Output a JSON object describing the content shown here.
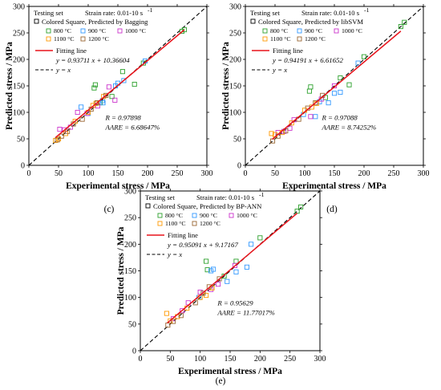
{
  "figure": {
    "panels": [
      {
        "panel_label": "(c)",
        "legend": {
          "set_label": "Testing set",
          "strain_rate": "Strain rate: 0.01-10 s",
          "strain_rate_sup": "-1",
          "model_label": "Colored Square, Predicted by Bagging",
          "temps": [
            "800 °C",
            "900 °C",
            "1000 °C",
            "1100 °C",
            "1200 °C"
          ],
          "fit_label": "Fitting line",
          "fit_equation": "y = 0.93711 x + 10.36604",
          "identity_label": "y = x"
        },
        "stats": {
          "r": "R = 0.97898",
          "aare": "AARE = 6.68647%"
        },
        "xlabel": "Experimental stress / MPa",
        "ylabel": "Predicted stress / MPa"
      },
      {
        "panel_label": "(d)",
        "legend": {
          "set_label": "Testing set",
          "strain_rate": "Strain rate: 0.01-10 s",
          "strain_rate_sup": "-1",
          "model_label": "Colored Square, Predicted by libSVM",
          "temps": [
            "800 °C",
            "900 °C",
            "1000 °C",
            "1100 °C",
            "1200 °C"
          ],
          "fit_label": "Fitting line",
          "fit_equation": "y = 0.94191 x + 6.61652",
          "identity_label": "y = x"
        },
        "stats": {
          "r": "R = 0.97088",
          "aare": "AARE = 8.74252%"
        },
        "xlabel": "Experimental stress / MPa",
        "ylabel": "Predicted stress / MPa"
      },
      {
        "panel_label": "(e)",
        "legend": {
          "set_label": "Testing set",
          "strain_rate": "Strain rate: 0.01-10 s",
          "strain_rate_sup": "-1",
          "model_label": "Colored Square, Predicted by BP-ANN",
          "temps": [
            "800 °C",
            "900 °C",
            "1000 °C",
            "1100 °C",
            "1200 °C"
          ],
          "fit_label": "Fitting line",
          "fit_equation": "y = 0.95091 x + 9.17167",
          "identity_label": "y = x"
        },
        "stats": {
          "r": "R = 0.95629",
          "aare": "AARE = 11.77017%"
        },
        "xlabel": "Experimental stress / MPa",
        "ylabel": "Predicted stress / MPa"
      }
    ]
  },
  "colors": {
    "800": "#2ca02c",
    "900": "#3399ff",
    "1000": "#cc33cc",
    "1100": "#ff9900",
    "1200": "#996633",
    "fit": "#e8131b",
    "identity": "#000000"
  },
  "chart_data": [
    {
      "type": "scatter",
      "xlabel": "Experimental stress / MPa",
      "ylabel": "Predicted stress / MPa",
      "xlim": [
        0,
        300
      ],
      "ylim": [
        0,
        300
      ],
      "xticks": [
        0,
        50,
        100,
        150,
        200,
        250,
        300
      ],
      "yticks": [
        0,
        50,
        100,
        150,
        200,
        250,
        300
      ],
      "fit": {
        "slope": 0.93711,
        "intercept": 10.36604,
        "x_range": [
          45,
          262
        ]
      },
      "identity": true,
      "series": [
        {
          "name": "800 °C",
          "color_key": "800",
          "points": [
            [
              110,
              146
            ],
            [
              112,
              152
            ],
            [
              158,
              177
            ],
            [
              178,
              153
            ],
            [
              262,
              256
            ],
            [
              120,
              118
            ],
            [
              140,
              130
            ],
            [
              193,
              193
            ],
            [
              258,
              253
            ]
          ]
        },
        {
          "name": "900 °C",
          "color_key": "900",
          "points": [
            [
              88,
              110
            ],
            [
              124,
              122
            ],
            [
              146,
              150
            ],
            [
              150,
              155
            ],
            [
              160,
              160
            ],
            [
              196,
              197
            ],
            [
              100,
              98
            ],
            [
              125,
              118
            ]
          ]
        },
        {
          "name": "1000 °C",
          "color_key": "1000",
          "points": [
            [
              52,
              68
            ],
            [
              60,
              67
            ],
            [
              82,
              100
            ],
            [
              98,
              98
            ],
            [
              135,
              148
            ],
            [
              145,
              123
            ],
            [
              70,
              72
            ],
            [
              116,
              112
            ]
          ]
        },
        {
          "name": "1100 °C",
          "color_key": "1100",
          "points": [
            [
              45,
              47
            ],
            [
              50,
              50
            ],
            [
              62,
              60
            ],
            [
              78,
              83
            ],
            [
              100,
              100
            ],
            [
              113,
              117
            ],
            [
              126,
              130
            ],
            [
              108,
              113
            ]
          ]
        },
        {
          "name": "1200 °C",
          "color_key": "1200",
          "points": [
            [
              48,
              48
            ],
            [
              55,
              55
            ],
            [
              65,
              64
            ],
            [
              90,
              87
            ],
            [
              105,
              106
            ],
            [
              115,
              118
            ],
            [
              130,
              132
            ],
            [
              75,
              78
            ]
          ]
        }
      ]
    },
    {
      "type": "scatter",
      "xlabel": "Experimental stress / MPa",
      "ylabel": "Predicted stress / MPa",
      "xlim": [
        0,
        300
      ],
      "ylim": [
        0,
        300
      ],
      "xticks": [
        0,
        50,
        100,
        150,
        200,
        250,
        300
      ],
      "yticks": [
        0,
        50,
        100,
        150,
        200,
        250,
        300
      ],
      "fit": {
        "slope": 0.94191,
        "intercept": 6.61652,
        "x_range": [
          45,
          262
        ]
      },
      "identity": true,
      "series": [
        {
          "name": "800 °C",
          "color_key": "800",
          "points": [
            [
              108,
              140
            ],
            [
              110,
              148
            ],
            [
              160,
              165
            ],
            [
              175,
              152
            ],
            [
              262,
              262
            ],
            [
              268,
              270
            ],
            [
              200,
              205
            ],
            [
              135,
              128
            ]
          ]
        },
        {
          "name": "900 °C",
          "color_key": "900",
          "points": [
            [
              118,
              92
            ],
            [
              140,
              118
            ],
            [
              150,
              136
            ],
            [
              160,
              138
            ],
            [
              190,
              193
            ],
            [
              98,
              96
            ],
            [
              125,
              120
            ]
          ]
        },
        {
          "name": "1000 °C",
          "color_key": "1000",
          "points": [
            [
              55,
              62
            ],
            [
              65,
              64
            ],
            [
              82,
              86
            ],
            [
              110,
              92
            ],
            [
              128,
              125
            ],
            [
              150,
              150
            ],
            [
              75,
              70
            ]
          ]
        },
        {
          "name": "1100 °C",
          "color_key": "1100",
          "points": [
            [
              44,
              60
            ],
            [
              50,
              58
            ],
            [
              62,
              62
            ],
            [
              78,
              80
            ],
            [
              100,
              104
            ],
            [
              112,
              110
            ],
            [
              120,
              117
            ]
          ]
        },
        {
          "name": "1200 °C",
          "color_key": "1200",
          "points": [
            [
              46,
              46
            ],
            [
              55,
              55
            ],
            [
              68,
              65
            ],
            [
              90,
              87
            ],
            [
              105,
              108
            ],
            [
              118,
              118
            ],
            [
              130,
              132
            ]
          ]
        }
      ]
    },
    {
      "type": "scatter",
      "xlabel": "Experimental stress / MPa",
      "ylabel": "Predicted stress / MPa",
      "xlim": [
        0,
        300
      ],
      "ylim": [
        0,
        300
      ],
      "xticks": [
        0,
        50,
        100,
        150,
        200,
        250,
        300
      ],
      "yticks": [
        0,
        50,
        100,
        150,
        200,
        250,
        300
      ],
      "fit": {
        "slope": 0.95091,
        "intercept": 9.17167,
        "x_range": [
          45,
          262
        ]
      },
      "identity": true,
      "series": [
        {
          "name": "800 °C",
          "color_key": "800",
          "points": [
            [
              110,
              168
            ],
            [
              112,
              152
            ],
            [
              160,
              168
            ],
            [
              200,
              212
            ],
            [
              262,
              262
            ],
            [
              268,
              270
            ],
            [
              140,
              140
            ]
          ]
        },
        {
          "name": "900 °C",
          "color_key": "900",
          "points": [
            [
              118,
              150
            ],
            [
              122,
              153
            ],
            [
              145,
              130
            ],
            [
              160,
              148
            ],
            [
              178,
              157
            ],
            [
              185,
              200
            ],
            [
              98,
              100
            ]
          ]
        },
        {
          "name": "1000 °C",
          "color_key": "1000",
          "points": [
            [
              55,
              60
            ],
            [
              70,
              75
            ],
            [
              80,
              90
            ],
            [
              100,
              110
            ],
            [
              130,
              125
            ],
            [
              158,
              160
            ],
            [
              118,
              115
            ]
          ]
        },
        {
          "name": "1100 °C",
          "color_key": "1100",
          "points": [
            [
              44,
              70
            ],
            [
              50,
              56
            ],
            [
              62,
              64
            ],
            [
              78,
              80
            ],
            [
              100,
              100
            ],
            [
              110,
              104
            ],
            [
              120,
              118
            ]
          ]
        },
        {
          "name": "1200 °C",
          "color_key": "1200",
          "points": [
            [
              46,
              48
            ],
            [
              55,
              55
            ],
            [
              68,
              66
            ],
            [
              92,
              90
            ],
            [
              105,
              108
            ],
            [
              115,
              120
            ],
            [
              132,
              135
            ]
          ]
        }
      ]
    }
  ]
}
